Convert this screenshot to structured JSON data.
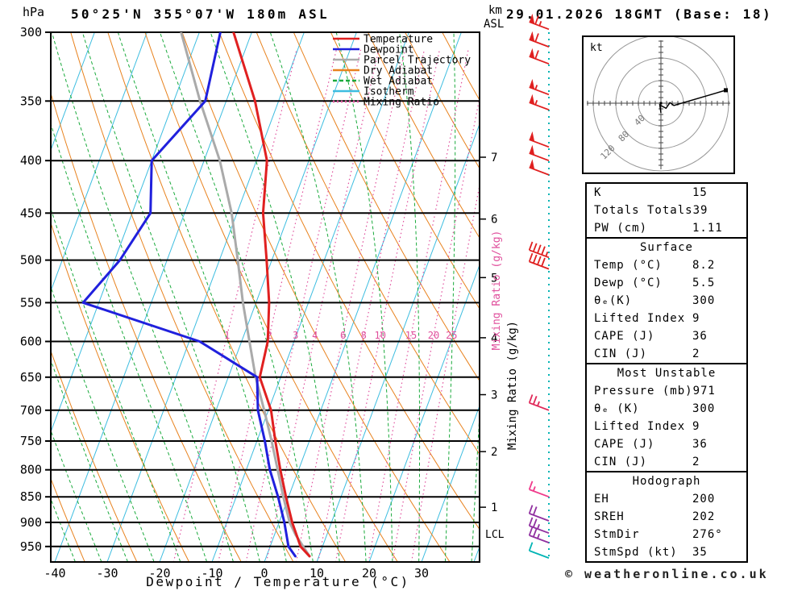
{
  "header": {
    "pressure_unit": "hPa",
    "title": "50°25'N 355°07'W 180m ASL",
    "altitude_unit_line1": "km",
    "altitude_unit_line2": "ASL",
    "datetime": "29.01.2026 18GMT (Base: 18)"
  },
  "footer": {
    "credit": "© weatheronline.co.uk"
  },
  "colors": {
    "temperature": "#e02020",
    "dewpoint": "#2020dd",
    "parcel": "#aaaaaa",
    "dry_adiabat": "#e8821e",
    "wet_adiabat": "#1aaa3c",
    "isotherm": "#3dbde0",
    "mixing_ratio": "#e0509d",
    "barb_line": "#00b4b4",
    "grid": "#000000"
  },
  "legend": [
    {
      "label": "Temperature",
      "color": "#e02020",
      "style": "solid"
    },
    {
      "label": "Dewpoint",
      "color": "#2020dd",
      "style": "solid"
    },
    {
      "label": "Parcel Trajectory",
      "color": "#aaaaaa",
      "style": "solid"
    },
    {
      "label": "Dry Adiabat",
      "color": "#e8821e",
      "style": "solid"
    },
    {
      "label": "Wet Adiabat",
      "color": "#1aaa3c",
      "style": "dashed"
    },
    {
      "label": "Isotherm",
      "color": "#3dbde0",
      "style": "solid"
    },
    {
      "label": "Mixing Ratio",
      "color": "#e0509d",
      "style": "dotted"
    }
  ],
  "chart_data": {
    "type": "line",
    "subtype": "skewT-logP",
    "xlabel": "Dewpoint / Temperature (°C)",
    "ylabel": "hPa",
    "x_ticks": [
      -40,
      -30,
      -20,
      -10,
      0,
      10,
      20,
      30
    ],
    "pressure_ticks": [
      300,
      350,
      400,
      450,
      500,
      550,
      600,
      650,
      700,
      750,
      800,
      850,
      900,
      950
    ],
    "km_ticks": [
      [
        1,
        870
      ],
      [
        2,
        768
      ],
      [
        3,
        676
      ],
      [
        4,
        595
      ],
      [
        5,
        520
      ],
      [
        6,
        456
      ],
      [
        7,
        397
      ]
    ],
    "lcl": {
      "label": "LCL",
      "pressure": 925
    },
    "mixing_ratio_label": "Mixing Ratio (g/kg)",
    "mixing_ratio_values": [
      1,
      2,
      3,
      4,
      6,
      8,
      10,
      15,
      20,
      25
    ],
    "series": [
      {
        "name": "Temperature",
        "color": "#e02020",
        "points": [
          [
            971,
            8.2
          ],
          [
            950,
            5.8
          ],
          [
            900,
            2.5
          ],
          [
            850,
            -0.5
          ],
          [
            800,
            -3.5
          ],
          [
            750,
            -6.5
          ],
          [
            700,
            -9.5
          ],
          [
            650,
            -14.0
          ],
          [
            600,
            -15.0
          ],
          [
            550,
            -17.5
          ],
          [
            500,
            -21.0
          ],
          [
            450,
            -25.0
          ],
          [
            400,
            -28.0
          ],
          [
            350,
            -34.5
          ],
          [
            300,
            -43.5
          ]
        ]
      },
      {
        "name": "Dewpoint",
        "color": "#2020dd",
        "points": [
          [
            971,
            5.5
          ],
          [
            950,
            3.5
          ],
          [
            900,
            1.0
          ],
          [
            850,
            -2.0
          ],
          [
            800,
            -5.5
          ],
          [
            750,
            -8.5
          ],
          [
            700,
            -12.0
          ],
          [
            650,
            -14.5
          ],
          [
            600,
            -28.0
          ],
          [
            550,
            -53.0
          ],
          [
            500,
            -49.0
          ],
          [
            450,
            -46.5
          ],
          [
            400,
            -50.0
          ],
          [
            350,
            -44.0
          ],
          [
            300,
            -46.0
          ]
        ]
      },
      {
        "name": "Parcel Trajectory",
        "color": "#aaaaaa",
        "points": [
          [
            971,
            8.2
          ],
          [
            925,
            4.0
          ],
          [
            900,
            2.0
          ],
          [
            850,
            -1.0
          ],
          [
            800,
            -4.0
          ],
          [
            750,
            -7.2
          ],
          [
            700,
            -10.8
          ],
          [
            650,
            -14.8
          ],
          [
            600,
            -18.5
          ],
          [
            550,
            -22.5
          ],
          [
            500,
            -26.5
          ],
          [
            450,
            -31.0
          ],
          [
            400,
            -37.0
          ],
          [
            350,
            -45.0
          ],
          [
            300,
            -53.5
          ]
        ]
      }
    ],
    "wind_barbs": [
      {
        "p": 298,
        "speed": 65,
        "color": "#e02020"
      },
      {
        "p": 310,
        "speed": 60,
        "color": "#e02020"
      },
      {
        "p": 322,
        "speed": 60,
        "color": "#e02020"
      },
      {
        "p": 345,
        "speed": 55,
        "color": "#e02020"
      },
      {
        "p": 357,
        "speed": 55,
        "color": "#e02020"
      },
      {
        "p": 388,
        "speed": 50,
        "color": "#e02020"
      },
      {
        "p": 400,
        "speed": 50,
        "color": "#e02020"
      },
      {
        "p": 413,
        "speed": 50,
        "color": "#e02020"
      },
      {
        "p": 497,
        "speed": 45,
        "color": "#e02020"
      },
      {
        "p": 510,
        "speed": 40,
        "color": "#e02020"
      },
      {
        "p": 700,
        "speed": 25,
        "color": "#e02858"
      },
      {
        "p": 850,
        "speed": 15,
        "color": "#f03c8c"
      },
      {
        "p": 897,
        "speed": 20,
        "color": "#9030a0"
      },
      {
        "p": 922,
        "speed": 25,
        "color": "#9030a0"
      },
      {
        "p": 942,
        "speed": 25,
        "color": "#9030a0"
      },
      {
        "p": 975,
        "speed": 10,
        "color": "#00b4b4"
      }
    ]
  },
  "hodograph": {
    "unit": "kt",
    "rings": [
      40,
      80,
      120
    ],
    "trace": [
      [
        0,
        -17
      ],
      [
        -2,
        -3
      ],
      [
        9,
        -9
      ],
      [
        16,
        1
      ],
      [
        23,
        -4
      ],
      [
        115,
        23
      ]
    ]
  },
  "panel": {
    "sections": [
      {
        "header": null,
        "rows": [
          [
            "K",
            "15"
          ],
          [
            "Totals Totals",
            "39"
          ],
          [
            "PW (cm)",
            "1.11"
          ]
        ]
      },
      {
        "header": "Surface",
        "rows": [
          [
            "Temp (°C)",
            "8.2"
          ],
          [
            "Dewp (°C)",
            "5.5"
          ],
          [
            "θₑ(K)",
            "300"
          ],
          [
            "Lifted Index",
            "9"
          ],
          [
            "CAPE (J)",
            "36"
          ],
          [
            "CIN (J)",
            "2"
          ]
        ]
      },
      {
        "header": "Most Unstable",
        "rows": [
          [
            "Pressure (mb)",
            "971"
          ],
          [
            "θₑ (K)",
            "300"
          ],
          [
            "Lifted Index",
            "9"
          ],
          [
            "CAPE (J)",
            "36"
          ],
          [
            "CIN (J)",
            "2"
          ]
        ]
      },
      {
        "header": "Hodograph",
        "rows": [
          [
            "EH",
            "200"
          ],
          [
            "SREH",
            "202"
          ],
          [
            "StmDir",
            "276°"
          ],
          [
            "StmSpd (kt)",
            "35"
          ]
        ]
      }
    ]
  }
}
